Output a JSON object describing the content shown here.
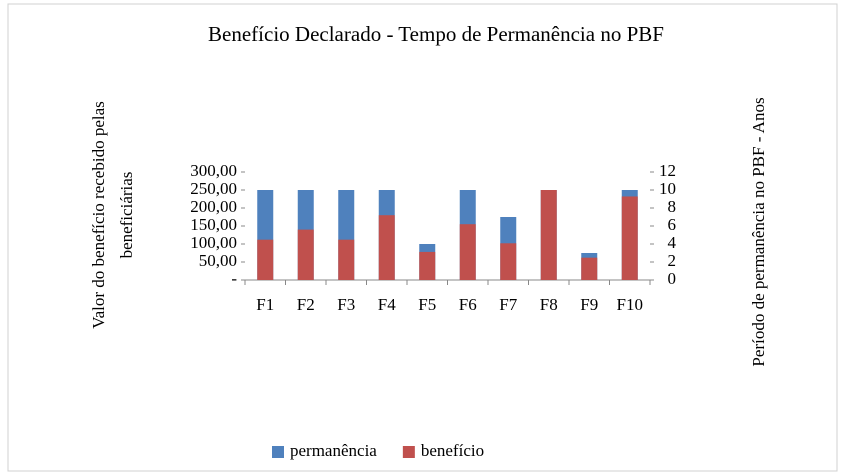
{
  "chart_data": {
    "type": "bar",
    "title": "Benefício Declarado - Tempo de Permanência no PBF",
    "ylabel": [
      "Valor do benefício recebido pelas",
      "beneficiárias"
    ],
    "y2label": "Período de permanência no PBF - Anos",
    "categories": [
      "F1",
      "F2",
      "F3",
      "F4",
      "F5",
      "F6",
      "F7",
      "F8",
      "F9",
      "F10"
    ],
    "series": [
      {
        "name": "permanência",
        "color": "#4f81bd",
        "axis": "y2",
        "values": [
          10,
          10,
          10,
          10,
          4,
          10,
          7,
          10,
          3,
          10
        ]
      },
      {
        "name": "benefício",
        "color": "#c0504d",
        "values": [
          112,
          140,
          112,
          180,
          78,
          155,
          102,
          250,
          62,
          232
        ]
      }
    ],
    "ylim": [
      0,
      300
    ],
    "yticks": [
      {
        "value": 0,
        "label": "-"
      },
      {
        "value": 50,
        "label": "50,00"
      },
      {
        "value": 100,
        "label": "100,00"
      },
      {
        "value": 150,
        "label": "150,00"
      },
      {
        "value": 200,
        "label": "200,00"
      },
      {
        "value": 250,
        "label": "250,00"
      },
      {
        "value": 300,
        "label": "300,00"
      }
    ],
    "y2lim": [
      0,
      12
    ],
    "y2ticks": [
      0,
      2,
      4,
      6,
      8,
      10,
      12
    ],
    "legend": "bottom"
  }
}
